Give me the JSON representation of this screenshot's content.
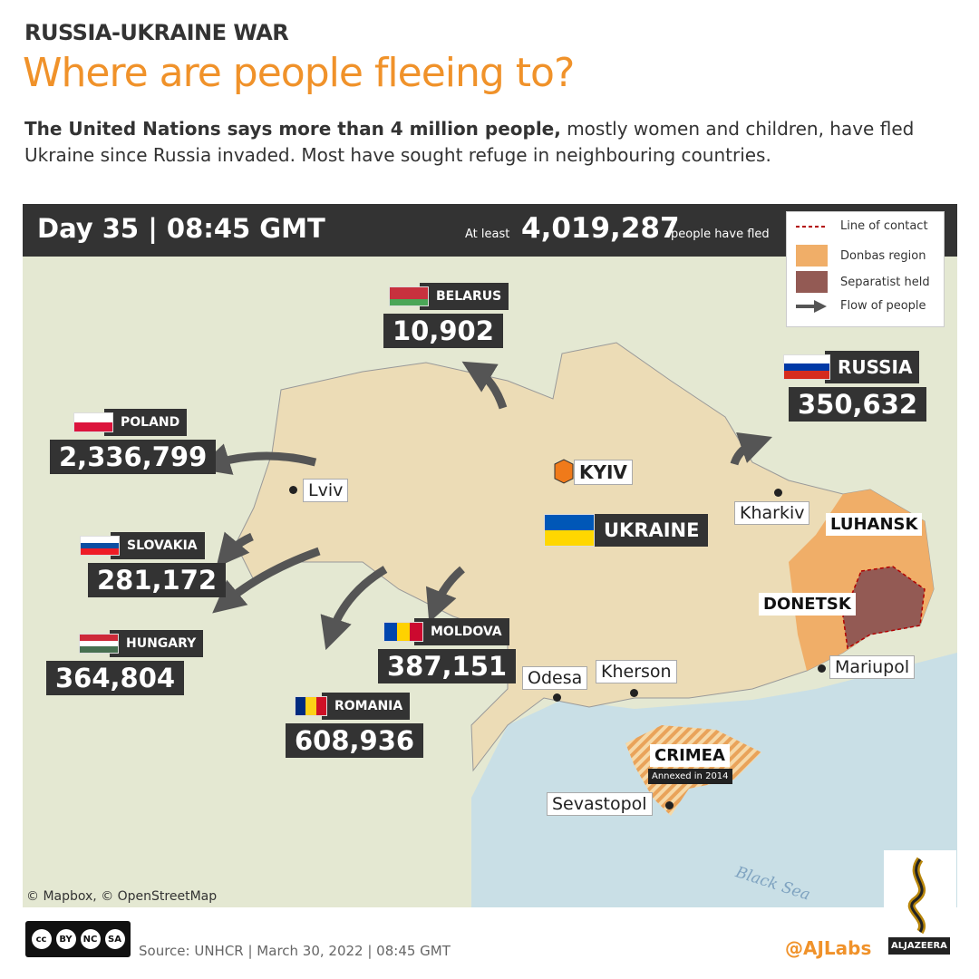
{
  "kicker": "RUSSIA-UKRAINE WAR",
  "title": "Where are people fleeing to?",
  "intro": {
    "bold": "The United Nations says more than 4 million people,",
    "rest": " mostly women and children, have fled Ukraine since Russia invaded. Most have sought refuge in neighbouring countries."
  },
  "topbar": {
    "day": "Day 35 | 08:45 GMT",
    "at_least": "At least",
    "total": "4,019,287",
    "fled": "people have fled"
  },
  "legend": [
    {
      "label": "Line of contact",
      "color": "#b30000",
      "icon": "dashed-line"
    },
    {
      "label": "Donbas region",
      "color": "#f0ae68",
      "icon": "swatch"
    },
    {
      "label": "Separatist held",
      "color": "#935a54",
      "icon": "swatch"
    },
    {
      "label": "Flow of people",
      "color": "#555555",
      "icon": "arrow"
    }
  ],
  "countries": [
    {
      "name": "BELARUS",
      "count": "10,902",
      "flag": [
        "#c8313e",
        "#4aa657"
      ]
    },
    {
      "name": "RUSSIA",
      "count": "350,632",
      "flag": [
        "#ffffff",
        "#0039a6",
        "#d52b1e"
      ]
    },
    {
      "name": "POLAND",
      "count": "2,336,799",
      "flag": [
        "#ffffff",
        "#dc143c"
      ]
    },
    {
      "name": "SLOVAKIA",
      "count": "281,172",
      "flag": [
        "#ffffff",
        "#0b4ea2",
        "#ee1c25"
      ]
    },
    {
      "name": "HUNGARY",
      "count": "364,804",
      "flag": [
        "#ce2939",
        "#ffffff",
        "#477050"
      ]
    },
    {
      "name": "MOLDOVA",
      "count": "387,151",
      "flag": [
        "#0046ae",
        "#ffd200",
        "#cc092f"
      ]
    },
    {
      "name": "ROMANIA",
      "count": "608,936",
      "flag": [
        "#002b7f",
        "#fcd116",
        "#ce1126"
      ]
    }
  ],
  "ukraine": {
    "name": "UKRAINE",
    "flag": [
      "#0057b7",
      "#ffd700"
    ]
  },
  "cities": {
    "kyiv": "KYIV",
    "lviv": "Lviv",
    "kharkiv": "Kharkiv",
    "odesa": "Odesa",
    "kherson": "Kherson",
    "mariupol": "Mariupol",
    "sevastopol": "Sevastopol"
  },
  "regions": {
    "luhansk": "LUHANSK",
    "donetsk": "DONETSK",
    "crimea": "CRIMEA",
    "crimea_note": "Annexed in 2014"
  },
  "sea": "Black Sea",
  "map_credit": "© Mapbox, © OpenStreetMap",
  "footer": {
    "source": "Source: UNHCR | March 30, 2022 | 08:45 GMT",
    "handle": "@AJLabs",
    "brand": "ALJAZEERA",
    "license": [
      "BY",
      "NC",
      "SA"
    ]
  }
}
